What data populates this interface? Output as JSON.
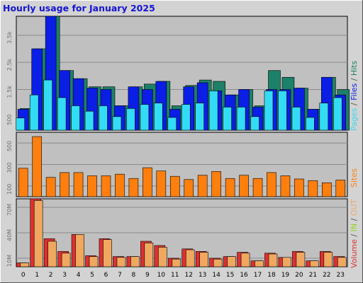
{
  "title": "Hourly usage for January 2025",
  "colors": {
    "hits": "#1d8068",
    "files": "#0a1ee6",
    "pages": "#34dbf5",
    "sites": "#ff7f0e",
    "volume": "#e03030",
    "in_volume": "#f0a860",
    "out_volume": "#8fd61a",
    "plot_bg": "#c0c0c0",
    "page_bg": "#d3d3d3",
    "title": "#1414d4"
  },
  "chart_data": [
    {
      "type": "bar",
      "name": "hits-files-pages",
      "categories": [
        "0",
        "1",
        "2",
        "3",
        "4",
        "5",
        "6",
        "7",
        "8",
        "9",
        "10",
        "11",
        "12",
        "13",
        "14",
        "15",
        "16",
        "17",
        "18",
        "19",
        "20",
        "21",
        "22",
        "23"
      ],
      "ytick_labels": [
        "500",
        "1.5k",
        "2.5k",
        "3.5k"
      ],
      "ytick_values": [
        500,
        1500,
        2500,
        3500
      ],
      "ylim": [
        0,
        4200
      ],
      "legend_labels": {
        "pages": "Pages",
        "sep1": " / ",
        "files": "Files",
        "sep2": " / ",
        "hits": "Hits"
      },
      "series": [
        {
          "name": "Hits",
          "color": "#1d8068",
          "values": [
            800,
            3000,
            4200,
            2200,
            1900,
            1600,
            1600,
            900,
            1600,
            1700,
            1800,
            900,
            1650,
            1850,
            1800,
            1300,
            1500,
            900,
            2200,
            1950,
            1550,
            770,
            1950,
            1500
          ]
        },
        {
          "name": "Files",
          "color": "#0a1ee6",
          "values": [
            770,
            3000,
            4200,
            2200,
            1900,
            1550,
            1500,
            900,
            1600,
            1500,
            1800,
            770,
            1600,
            1750,
            1450,
            1300,
            1500,
            850,
            1500,
            1500,
            1550,
            770,
            1950,
            1300
          ]
        },
        {
          "name": "Pages",
          "color": "#34dbf5",
          "values": [
            450,
            1300,
            1850,
            1200,
            900,
            700,
            900,
            500,
            800,
            950,
            1000,
            470,
            950,
            1000,
            1450,
            850,
            850,
            500,
            1450,
            1450,
            850,
            470,
            1000,
            1200
          ]
        }
      ]
    },
    {
      "type": "bar",
      "name": "sites",
      "categories": [
        "0",
        "1",
        "2",
        "3",
        "4",
        "5",
        "6",
        "7",
        "8",
        "9",
        "10",
        "11",
        "12",
        "13",
        "14",
        "15",
        "16",
        "17",
        "18",
        "19",
        "20",
        "21",
        "22",
        "23"
      ],
      "ytick_labels": [
        "100",
        "300",
        "500"
      ],
      "ytick_values": [
        100,
        300,
        500
      ],
      "ylim": [
        0,
        600
      ],
      "legend_labels": {
        "sites": "Sites"
      },
      "series": [
        {
          "name": "Sites",
          "color": "#ff7f0e",
          "values": [
            265,
            560,
            180,
            225,
            225,
            195,
            195,
            210,
            170,
            270,
            240,
            190,
            160,
            200,
            235,
            170,
            200,
            170,
            225,
            195,
            165,
            150,
            130,
            155
          ]
        }
      ]
    },
    {
      "type": "bar",
      "name": "volume",
      "categories": [
        "0",
        "1",
        "2",
        "3",
        "4",
        "5",
        "6",
        "7",
        "8",
        "9",
        "10",
        "11",
        "12",
        "13",
        "14",
        "15",
        "16",
        "17",
        "18",
        "19",
        "20",
        "21",
        "22",
        "23"
      ],
      "ytick_labels": [
        "10M",
        "40M",
        "70M"
      ],
      "ytick_values": [
        10,
        40,
        70
      ],
      "ylim": [
        0,
        80
      ],
      "legend_labels": {
        "volume": "Volume",
        "sep1": " / ",
        "in": "IN",
        "sep2": " / ",
        "out": "OUT"
      },
      "series": [
        {
          "name": "Volume",
          "color": "#e03030",
          "values": [
            4.5,
            80,
            33,
            18,
            38,
            13,
            33,
            12,
            12,
            30,
            25,
            10,
            21,
            18,
            10,
            12,
            17,
            7,
            16,
            11,
            18,
            7,
            18,
            12
          ]
        },
        {
          "name": "IN",
          "color": "#f0a860",
          "values": [
            4.5,
            78,
            30,
            16,
            38,
            12,
            32,
            11,
            12,
            28,
            23,
            9,
            20,
            17,
            9,
            12,
            16,
            7,
            15,
            11,
            17,
            7,
            17,
            11
          ]
        }
      ]
    }
  ]
}
